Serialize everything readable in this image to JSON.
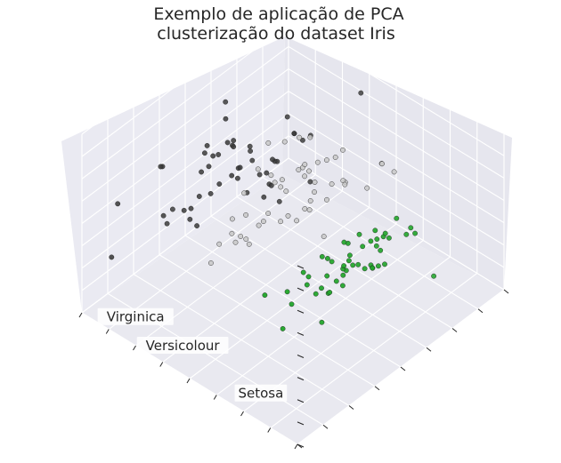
{
  "chart_data": {
    "type": "scatter",
    "projection": "3d",
    "title": [
      "Exemplo de aplicação de PCA",
      "clusterização do dataset Iris"
    ],
    "xlabel": "",
    "ylabel": "",
    "zlabel": "",
    "grid": true,
    "tick_labels": false,
    "view": {
      "elev": 48,
      "azim": 134
    },
    "xlim": [
      -4,
      4
    ],
    "ylim": [
      -1.5,
      1.5
    ],
    "zlim": [
      -1,
      1
    ],
    "colors": {
      "Setosa": "#22a52b",
      "Versicolour": "#c8c8c8",
      "Virginica": "#3a3a3a"
    },
    "series": [
      {
        "name": "Setosa",
        "points": [
          [
            -2.68,
            0.32,
            -0.03
          ],
          [
            -2.71,
            -0.18,
            -0.21
          ],
          [
            -2.89,
            -0.14,
            0.02
          ],
          [
            -2.75,
            -0.32,
            0.03
          ],
          [
            -2.73,
            0.33,
            0.09
          ],
          [
            -2.28,
            0.74,
            0.17
          ],
          [
            -2.82,
            -0.09,
            0.26
          ],
          [
            -2.63,
            0.16,
            -0.02
          ],
          [
            -2.89,
            -0.58,
            0.02
          ],
          [
            -2.67,
            -0.11,
            -0.2
          ],
          [
            -2.51,
            0.65,
            -0.08
          ],
          [
            -2.61,
            0.01,
            0.1
          ],
          [
            -2.79,
            -0.24,
            -0.21
          ],
          [
            -3.23,
            -0.51,
            0.06
          ],
          [
            -2.64,
            1.18,
            -0.14
          ],
          [
            -2.38,
            1.34,
            0.28
          ],
          [
            -2.62,
            0.82,
            0.14
          ],
          [
            -2.65,
            0.31,
            0.03
          ],
          [
            -2.2,
            0.88,
            -0.12
          ],
          [
            -2.59,
            0.51,
            0.25
          ],
          [
            -2.31,
            0.39,
            -0.26
          ],
          [
            -2.54,
            0.43,
            0.16
          ],
          [
            -3.22,
            0.13,
            0.34
          ],
          [
            -2.3,
            0.1,
            0.13
          ],
          [
            -2.36,
            -0.04,
            0.16
          ],
          [
            -2.51,
            -0.15,
            -0.22
          ],
          [
            -2.47,
            0.14,
            0.05
          ],
          [
            -2.56,
            0.37,
            -0.09
          ],
          [
            -2.64,
            0.31,
            -0.16
          ],
          [
            -2.63,
            -0.19,
            0.07
          ],
          [
            -2.59,
            -0.2,
            -0.02
          ],
          [
            -2.41,
            0.41,
            -0.22
          ],
          [
            -2.65,
            0.81,
            0.23
          ],
          [
            -2.6,
            1.1,
            0.22
          ],
          [
            -2.67,
            -0.11,
            -0.2
          ],
          [
            -2.87,
            0.08,
            -0.06
          ],
          [
            -2.63,
            0.61,
            -0.4
          ],
          [
            -2.67,
            -0.11,
            -0.2
          ],
          [
            -2.98,
            -0.48,
            0.02
          ],
          [
            -2.59,
            0.24,
            -0.04
          ],
          [
            -2.77,
            0.27,
            0.12
          ],
          [
            -2.85,
            -0.93,
            -0.73
          ],
          [
            -3.0,
            -0.33,
            0.29
          ],
          [
            -2.41,
            0.2,
            0.22
          ],
          [
            -2.21,
            0.44,
            0.16
          ],
          [
            -2.72,
            -0.25,
            0.08
          ],
          [
            -2.54,
            0.5,
            0.04
          ],
          [
            -2.84,
            -0.23,
            0.15
          ],
          [
            -2.54,
            0.58,
            -0.05
          ],
          [
            -2.7,
            0.11,
            -0.03
          ]
        ]
      },
      {
        "name": "Versicolour",
        "points": [
          [
            1.28,
            0.69,
            -0.41
          ],
          [
            0.93,
            0.32,
            -0.02
          ],
          [
            1.46,
            0.5,
            -0.34
          ],
          [
            0.18,
            -0.83,
            -0.18
          ],
          [
            1.09,
            0.07,
            -0.31
          ],
          [
            0.64,
            -0.42,
            0.04
          ],
          [
            1.1,
            0.28,
            0.17
          ],
          [
            -0.75,
            -1.0,
            0.1
          ],
          [
            1.04,
            0.23,
            -0.42
          ],
          [
            -0.01,
            -0.72,
            0.28
          ],
          [
            -0.51,
            -1.27,
            -0.19
          ],
          [
            0.51,
            -0.1,
            0.08
          ],
          [
            0.26,
            -0.55,
            -0.64
          ],
          [
            0.98,
            -0.12,
            0.08
          ],
          [
            -0.17,
            -0.25,
            0.22
          ],
          [
            0.93,
            0.47,
            -0.24
          ],
          [
            0.66,
            -0.35,
            0.51
          ],
          [
            0.23,
            -0.33,
            -0.21
          ],
          [
            0.94,
            -0.54,
            -0.45
          ],
          [
            0.04,
            -0.58,
            -0.03
          ],
          [
            1.12,
            -0.08,
            0.52
          ],
          [
            0.36,
            -0.07,
            -0.15
          ],
          [
            1.3,
            -0.33,
            -0.15
          ],
          [
            0.92,
            -0.18,
            -0.38
          ],
          [
            0.71,
            0.15,
            -0.15
          ],
          [
            0.9,
            0.33,
            -0.28
          ],
          [
            1.33,
            0.24,
            -0.38
          ],
          [
            1.56,
            0.27,
            -0.21
          ],
          [
            0.81,
            -0.16,
            0.12
          ],
          [
            -0.31,
            -0.37,
            -0.02
          ],
          [
            -0.07,
            -0.7,
            -0.04
          ],
          [
            -0.19,
            -0.68,
            -0.05
          ],
          [
            0.14,
            -0.31,
            -0.08
          ],
          [
            1.38,
            -0.42,
            0.29
          ],
          [
            0.59,
            -0.48,
            0.45
          ],
          [
            0.81,
            0.19,
            0.44
          ],
          [
            1.22,
            0.41,
            -0.23
          ],
          [
            0.81,
            -0.37,
            -0.46
          ],
          [
            0.25,
            -0.27,
            0.33
          ],
          [
            0.16,
            -0.68,
            0.19
          ],
          [
            0.46,
            -0.67,
            0.11
          ],
          [
            0.89,
            -0.03,
            0.23
          ],
          [
            0.23,
            -0.4,
            -0.05
          ],
          [
            -0.71,
            -1.01,
            0.09
          ],
          [
            0.36,
            -0.5,
            0.2
          ],
          [
            0.33,
            -0.21,
            0.29
          ],
          [
            0.38,
            -0.29,
            0.26
          ],
          [
            0.64,
            0.11,
            -0.07
          ],
          [
            -0.91,
            -0.72,
            0.02
          ],
          [
            0.3,
            -0.35,
            0.2
          ]
        ]
      },
      {
        "name": "Virginica",
        "points": [
          [
            2.53,
            -0.01,
            0.76
          ],
          [
            1.41,
            -0.57,
            0.29
          ],
          [
            2.61,
            0.34,
            -0.11
          ],
          [
            1.97,
            -0.18,
            0.11
          ],
          [
            2.35,
            -0.04,
            0.29
          ],
          [
            3.4,
            0.55,
            -0.35
          ],
          [
            0.52,
            -1.19,
            0.55
          ],
          [
            2.93,
            0.35,
            -0.42
          ],
          [
            2.32,
            -0.24,
            -0.35
          ],
          [
            2.92,
            0.78,
            0.42
          ],
          [
            1.66,
            0.24,
            0.24
          ],
          [
            1.8,
            -0.22,
            -0.04
          ],
          [
            2.17,
            0.22,
            0.04
          ],
          [
            1.34,
            -0.78,
            0.16
          ],
          [
            1.59,
            -0.54,
            0.46
          ],
          [
            1.9,
            0.12,
            0.52
          ],
          [
            1.95,
            0.04,
            0.04
          ],
          [
            3.49,
            1.18,
            0.13
          ],
          [
            3.8,
            0.26,
            -0.52
          ],
          [
            1.3,
            -0.76,
            -0.34
          ],
          [
            2.43,
            0.38,
            0.22
          ],
          [
            1.2,
            -0.61,
            0.23
          ],
          [
            3.5,
            0.46,
            -0.51
          ],
          [
            1.39,
            -0.2,
            -0.06
          ],
          [
            2.28,
            0.33,
            0.28
          ],
          [
            2.61,
            0.56,
            -0.14
          ],
          [
            1.26,
            -0.18,
            -0.04
          ],
          [
            1.29,
            -0.12,
            0.13
          ],
          [
            2.12,
            -0.21,
            0.17
          ],
          [
            2.39,
            0.46,
            -0.33
          ],
          [
            2.84,
            0.37,
            -0.27
          ],
          [
            3.23,
            1.37,
            -0.31
          ],
          [
            2.16,
            -0.22,
            0.21
          ],
          [
            1.44,
            -0.14,
            -0.18
          ],
          [
            1.78,
            -0.5,
            -0.5
          ],
          [
            3.08,
            0.69,
            0.34
          ],
          [
            2.14,
            0.14,
            0.73
          ],
          [
            1.9,
            0.05,
            0.17
          ],
          [
            1.17,
            -0.16,
            0.28
          ],
          [
            2.11,
            0.37,
            0.03
          ],
          [
            2.31,
            0.18,
            0.32
          ],
          [
            1.92,
            0.41,
            0.51
          ],
          [
            1.41,
            -0.57,
            0.29
          ],
          [
            2.56,
            0.28,
            0.35
          ],
          [
            2.42,
            0.3,
            0.47
          ],
          [
            1.94,
            0.19,
            0.53
          ],
          [
            1.53,
            -0.37,
            0.07
          ],
          [
            1.76,
            0.08,
            0.22
          ],
          [
            1.9,
            0.12,
            0.45
          ],
          [
            1.39,
            -0.28,
            0.15
          ]
        ]
      }
    ],
    "annotations": [
      {
        "text": "Setosa",
        "x": -2.64,
        "y": 1.5,
        "z": -0.7
      },
      {
        "text": "Versicolour",
        "x": 0.26,
        "y": 1.5,
        "z": -0.7
      },
      {
        "text": "Virginica",
        "x": 2.01,
        "y": 1.5,
        "z": -0.7
      }
    ]
  }
}
